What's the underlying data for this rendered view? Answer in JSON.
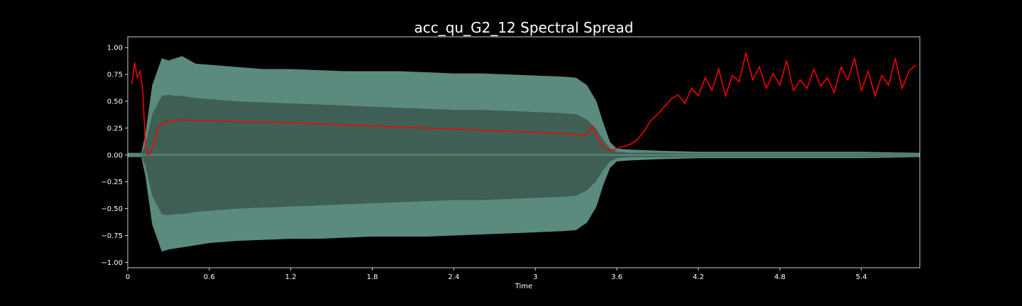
{
  "chart_data": {
    "type": "line",
    "title": "acc_qu_G2_12 Spectral Spread",
    "xlabel": "Time",
    "ylabel": "",
    "xlim": [
      0,
      5.83
    ],
    "ylim": [
      -1.05,
      1.1
    ],
    "x_ticks": [
      0,
      0.6,
      1.2,
      1.8,
      2.4,
      3.0,
      3.6,
      4.2,
      4.8,
      5.4
    ],
    "x_tick_labels": [
      "0",
      "0.6",
      "1.2",
      "1.8",
      "2.4",
      "3",
      "3.6",
      "4.2",
      "4.8",
      "5.4"
    ],
    "y_ticks": [
      -1.0,
      -0.75,
      -0.5,
      -0.25,
      0.0,
      0.25,
      0.5,
      0.75,
      1.0
    ],
    "y_tick_labels": [
      "−1.00",
      "−0.75",
      "−0.50",
      "−0.25",
      "0.00",
      "0.25",
      "0.50",
      "0.75",
      "1.00"
    ],
    "grid": false,
    "background": "#000000",
    "waveform_color": "#5b8a7e",
    "waveform_core_color": "#3f5f55",
    "series_color": "#ff0000",
    "waveform_envelope": {
      "x": [
        0,
        0.1,
        0.13,
        0.18,
        0.25,
        0.3,
        0.35,
        0.4,
        0.5,
        0.6,
        0.8,
        1.0,
        1.2,
        1.4,
        1.6,
        1.8,
        2.0,
        2.2,
        2.4,
        2.6,
        2.8,
        3.0,
        3.2,
        3.3,
        3.38,
        3.45,
        3.5,
        3.55,
        3.6,
        3.7,
        3.9,
        4.2,
        4.6,
        5.0,
        5.4,
        5.83
      ],
      "upper": [
        0.02,
        0.02,
        0.2,
        0.65,
        0.9,
        0.88,
        0.9,
        0.92,
        0.85,
        0.84,
        0.82,
        0.8,
        0.8,
        0.79,
        0.78,
        0.78,
        0.78,
        0.77,
        0.76,
        0.76,
        0.75,
        0.74,
        0.73,
        0.72,
        0.65,
        0.5,
        0.3,
        0.12,
        0.06,
        0.05,
        0.04,
        0.03,
        0.03,
        0.03,
        0.03,
        0.02
      ],
      "lower": [
        -0.02,
        -0.02,
        -0.2,
        -0.65,
        -0.9,
        -0.88,
        -0.87,
        -0.86,
        -0.84,
        -0.82,
        -0.8,
        -0.79,
        -0.78,
        -0.78,
        -0.77,
        -0.76,
        -0.76,
        -0.76,
        -0.75,
        -0.74,
        -0.73,
        -0.72,
        -0.71,
        -0.7,
        -0.63,
        -0.48,
        -0.28,
        -0.12,
        -0.06,
        -0.05,
        -0.04,
        -0.03,
        -0.03,
        -0.03,
        -0.03,
        -0.02
      ],
      "core": [
        0.01,
        0.01,
        0.1,
        0.38,
        0.55,
        0.56,
        0.55,
        0.55,
        0.53,
        0.52,
        0.5,
        0.49,
        0.48,
        0.47,
        0.46,
        0.45,
        0.44,
        0.43,
        0.42,
        0.42,
        0.41,
        0.4,
        0.39,
        0.38,
        0.33,
        0.24,
        0.14,
        0.06,
        0.03,
        0.02,
        0.02,
        0.015,
        0.015,
        0.015,
        0.015,
        0.01
      ]
    },
    "series": [
      {
        "x": [
          0.03,
          0.05,
          0.07,
          0.09,
          0.11,
          0.13,
          0.15,
          0.17,
          0.2,
          0.23,
          0.26,
          0.3,
          0.35,
          0.4,
          0.45,
          0.5,
          0.6,
          0.8,
          1.0,
          1.2,
          1.4,
          1.6,
          1.8,
          2.0,
          2.2,
          2.4,
          2.6,
          2.8,
          3.0,
          3.2,
          3.3,
          3.38,
          3.42,
          3.46,
          3.5,
          3.55,
          3.6,
          3.65,
          3.7,
          3.75,
          3.8,
          3.85,
          3.9,
          3.95,
          4.0,
          4.05,
          4.1,
          4.15,
          4.2,
          4.25,
          4.3,
          4.35,
          4.4,
          4.45,
          4.5,
          4.55,
          4.6,
          4.65,
          4.7,
          4.75,
          4.8,
          4.85,
          4.9,
          4.95,
          5.0,
          5.05,
          5.1,
          5.15,
          5.2,
          5.25,
          5.3,
          5.35,
          5.4,
          5.45,
          5.5,
          5.55,
          5.6,
          5.65,
          5.7,
          5.75,
          5.8
        ],
        "values": [
          0.66,
          0.86,
          0.72,
          0.78,
          0.6,
          0.1,
          0.0,
          0.02,
          0.15,
          0.26,
          0.3,
          0.31,
          0.32,
          0.33,
          0.32,
          0.32,
          0.32,
          0.31,
          0.31,
          0.3,
          0.29,
          0.28,
          0.27,
          0.26,
          0.25,
          0.24,
          0.23,
          0.22,
          0.21,
          0.2,
          0.19,
          0.19,
          0.27,
          0.15,
          0.08,
          0.04,
          0.06,
          0.08,
          0.1,
          0.14,
          0.22,
          0.32,
          0.38,
          0.45,
          0.52,
          0.56,
          0.48,
          0.62,
          0.55,
          0.72,
          0.6,
          0.8,
          0.55,
          0.74,
          0.68,
          0.95,
          0.7,
          0.82,
          0.62,
          0.76,
          0.65,
          0.88,
          0.6,
          0.7,
          0.62,
          0.8,
          0.64,
          0.72,
          0.58,
          0.82,
          0.7,
          0.9,
          0.6,
          0.78,
          0.55,
          0.74,
          0.65,
          0.9,
          0.62,
          0.78,
          0.84
        ]
      }
    ]
  }
}
